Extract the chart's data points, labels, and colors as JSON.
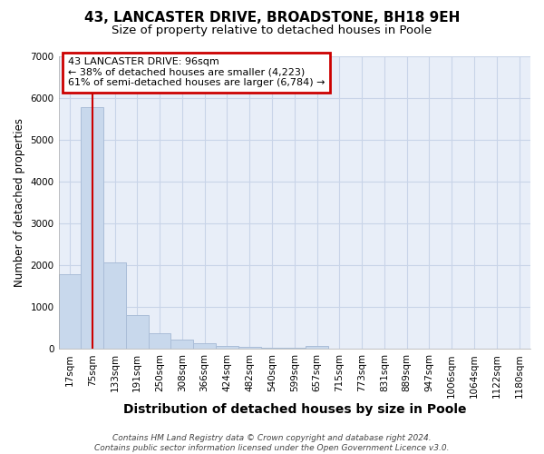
{
  "title1": "43, LANCASTER DRIVE, BROADSTONE, BH18 9EH",
  "title2": "Size of property relative to detached houses in Poole",
  "xlabel": "Distribution of detached houses by size in Poole",
  "ylabel": "Number of detached properties",
  "categories": [
    "17sqm",
    "75sqm",
    "133sqm",
    "191sqm",
    "250sqm",
    "308sqm",
    "366sqm",
    "424sqm",
    "482sqm",
    "540sqm",
    "599sqm",
    "657sqm",
    "715sqm",
    "773sqm",
    "831sqm",
    "889sqm",
    "947sqm",
    "1006sqm",
    "1064sqm",
    "1122sqm",
    "1180sqm"
  ],
  "values": [
    1780,
    5780,
    2060,
    800,
    370,
    220,
    130,
    80,
    50,
    35,
    20,
    65,
    10,
    0,
    0,
    0,
    0,
    0,
    0,
    0,
    0
  ],
  "bar_color": "#c8d8ec",
  "bar_edge_color": "#aabdd8",
  "grid_color": "#c8d4e8",
  "bg_color": "#ffffff",
  "plot_bg_color": "#e8eef8",
  "red_line_x": 1.0,
  "annotation_title": "43 LANCASTER DRIVE: 96sqm",
  "annotation_line1": "← 38% of detached houses are smaller (4,223)",
  "annotation_line2": "61% of semi-detached houses are larger (6,784) →",
  "annotation_box_color": "#ffffff",
  "annotation_border_color": "#cc0000",
  "ylim": [
    0,
    7000
  ],
  "yticks": [
    0,
    1000,
    2000,
    3000,
    4000,
    5000,
    6000,
    7000
  ],
  "footer": "Contains HM Land Registry data © Crown copyright and database right 2024.\nContains public sector information licensed under the Open Government Licence v3.0.",
  "title1_fontsize": 11,
  "title2_fontsize": 9.5,
  "xlabel_fontsize": 10,
  "ylabel_fontsize": 8.5,
  "tick_fontsize": 7.5,
  "annotation_fontsize": 8,
  "footer_fontsize": 6.5
}
